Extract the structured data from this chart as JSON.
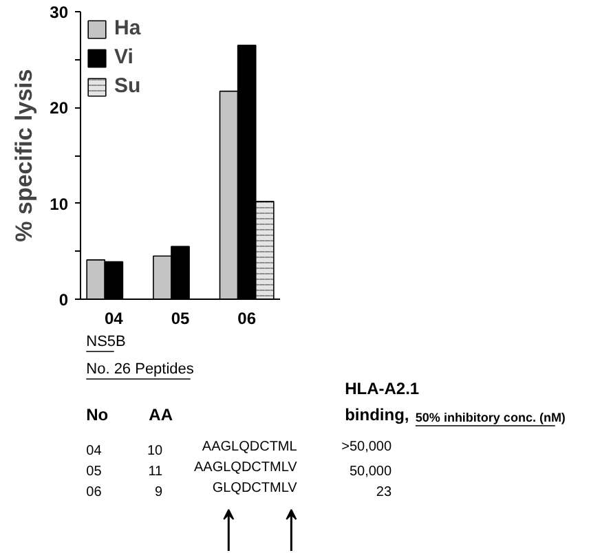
{
  "chart_data": {
    "type": "bar",
    "ylabel": "% specific lysis",
    "categories": [
      "04",
      "05",
      "06"
    ],
    "series": [
      {
        "name": "Ha",
        "color": "#c4c4c4",
        "values": [
          4.1,
          4.5,
          21.7
        ]
      },
      {
        "name": "Vi",
        "color": "#000000",
        "values": [
          3.9,
          5.5,
          26.5
        ]
      },
      {
        "name": "Su",
        "color": "#e4e4e4",
        "values": [
          null,
          null,
          10.2
        ]
      }
    ],
    "ylim": [
      0,
      30
    ],
    "yticks": [
      0,
      {
        "value": 5,
        "label": null
      },
      10,
      {
        "value": 15,
        "label": null
      },
      20,
      {
        "value": 25,
        "label": null
      },
      30
    ],
    "grid": false,
    "legend": "top left",
    "annotations": [
      "NS5B",
      "No. 26 Peptides",
      "HLA-A2.1",
      "binding,",
      "50% inhibitory conc. (nM)",
      "No",
      "AA",
      "04",
      "10",
      "AAGLQDCTML",
      ">50,000",
      "05",
      "11",
      "AAGLQDCTMLV",
      "50,000",
      "06",
      "9",
      "GLQDCTMLV",
      "23"
    ]
  }
}
